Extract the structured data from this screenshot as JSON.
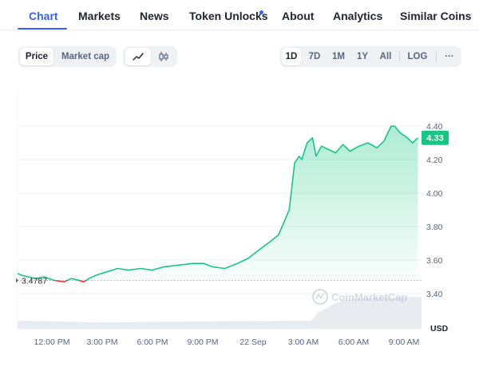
{
  "tabs": [
    {
      "label": "Chart",
      "active": true
    },
    {
      "label": "Markets",
      "active": false
    },
    {
      "label": "News",
      "active": false
    },
    {
      "label": "Token Unlocks",
      "active": false,
      "badge_dot": true
    },
    {
      "label": "About",
      "active": false
    },
    {
      "label": "Analytics",
      "active": false
    },
    {
      "label": "Similar Coins",
      "active": false
    }
  ],
  "toolbar": {
    "metric_options": [
      "Price",
      "Market cap"
    ],
    "selected_metric": "Price",
    "chart_style_icons": [
      "line-chart-icon",
      "candlestick-icon"
    ],
    "selected_style": "line-chart-icon",
    "ranges": [
      "1D",
      "7D",
      "1M",
      "1Y",
      "All"
    ],
    "selected_range": "1D",
    "log_label": "LOG",
    "more_label": "···"
  },
  "chart_data": {
    "type": "line",
    "x_ticks": [
      "12:00 PM",
      "3:00 PM",
      "6:00 PM",
      "9:00 PM",
      "22 Sep",
      "3:00 AM",
      "6:00 AM",
      "9:00 AM"
    ],
    "y_ticks": [
      "3.40",
      "3.60",
      "3.80",
      "4.00",
      "4.20",
      "4.40"
    ],
    "ylim": [
      3.4,
      4.4
    ],
    "y_unit": "USD",
    "open_price_label": "3.4787",
    "open_price": 3.4787,
    "current_price_label": "4.33",
    "current_price": 4.33,
    "watermark": "CoinMarketCap",
    "colors": {
      "up": "#16c784",
      "down": "#ea3943",
      "badge": "#16c784"
    },
    "series": [
      {
        "x_hours": [
          0,
          0.2,
          0.6,
          1.0,
          1.5,
          2.0,
          2.6,
          3.0,
          3.4,
          3.7,
          4.0,
          4.4,
          5.0,
          5.6,
          6.2,
          6.9,
          7.5,
          8.2,
          9.0,
          9.8,
          10.4,
          10.9,
          11.6,
          12.3,
          12.9,
          13.5,
          14.0,
          14.6,
          15.2,
          15.5,
          15.75,
          15.9,
          16.2,
          16.5,
          16.7,
          17.0,
          17.4,
          17.8,
          18.2,
          18.6,
          19.1,
          19.6,
          20.1,
          20.5,
          20.9,
          21.1,
          21.4,
          21.8,
          22.1,
          22.4
        ],
        "values": [
          3.52,
          3.51,
          3.5,
          3.49,
          3.5,
          3.48,
          3.47,
          3.49,
          3.48,
          3.47,
          3.49,
          3.51,
          3.53,
          3.55,
          3.54,
          3.55,
          3.54,
          3.56,
          3.57,
          3.58,
          3.58,
          3.56,
          3.55,
          3.58,
          3.61,
          3.66,
          3.7,
          3.75,
          3.9,
          4.18,
          4.22,
          4.2,
          4.3,
          4.33,
          4.22,
          4.28,
          4.26,
          4.24,
          4.29,
          4.25,
          4.28,
          4.3,
          4.27,
          4.31,
          4.4,
          4.4,
          4.36,
          4.33,
          4.3,
          4.33
        ]
      }
    ]
  }
}
